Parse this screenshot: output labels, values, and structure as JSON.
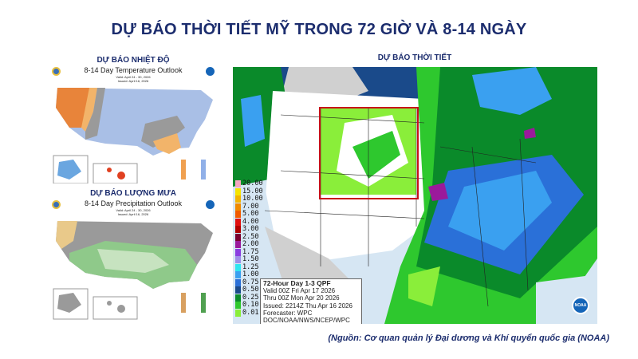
{
  "title": "DỰ BÁO THỜI TIẾT MỸ TRONG 72 GIỜ VÀ 8-14 NGÀY",
  "temperature_panel": {
    "heading": "DỰ BÁO NHIỆT ĐỘ",
    "map_title": "8-14 Day Temperature Outlook",
    "valid": "Valid: April 24 - 30, 2026",
    "issued": "Issued: April 16, 2026",
    "colors": {
      "above": "#e8843a",
      "near": "#9a9a9a",
      "below": "#a9bfe6"
    }
  },
  "precipitation_panel": {
    "heading": "DỰ BÁO LƯỢNG MƯA",
    "map_title": "8-14 Day Precipitation Outlook",
    "valid": "Valid: April 24 - 30, 2026",
    "issued": "Issued: April 16, 2026",
    "colors": {
      "above": "#8fc98a",
      "near": "#9a9a9a",
      "below": "#e9c98a"
    }
  },
  "main_map": {
    "heading": "DỰ BÁO THỜI TIẾT",
    "legend": [
      {
        "label": "20.00",
        "color": "#f4a6c0"
      },
      {
        "label": "15.00",
        "color": "#f5e400"
      },
      {
        "label": "10.00",
        "color": "#f2b400"
      },
      {
        "label": "7.00",
        "color": "#f08a00"
      },
      {
        "label": "5.00",
        "color": "#f05a00"
      },
      {
        "label": "4.00",
        "color": "#e01010"
      },
      {
        "label": "3.00",
        "color": "#b00000"
      },
      {
        "label": "2.50",
        "color": "#7a0030"
      },
      {
        "label": "2.00",
        "color": "#9b1a9b"
      },
      {
        "label": "1.75",
        "color": "#8a3ee0"
      },
      {
        "label": "1.50",
        "color": "#9d8ee8"
      },
      {
        "label": "1.25",
        "color": "#2ee6f0"
      },
      {
        "label": "1.00",
        "color": "#3aa0f0"
      },
      {
        "label": "0.75",
        "color": "#2a70d8"
      },
      {
        "label": "0.50",
        "color": "#1a4a8a"
      },
      {
        "label": "0.25",
        "color": "#0a8a2a"
      },
      {
        "label": "0.10",
        "color": "#2ec82e"
      },
      {
        "label": "0.01",
        "color": "#8aee3a"
      }
    ],
    "info": {
      "title": "72-Hour Day 1-3 QPF",
      "valid": "Valid 00Z Fri Apr 17 2026",
      "thru": "Thru 00Z Mon Apr 20 2026",
      "issued": "Issued: 2214Z Thu Apr 16 2026",
      "forecaster": "Forecaster: WPC",
      "agency": "DOC/NOAA/NWS/NCEP/WPC"
    },
    "logo_text": "NOAA",
    "highlight_color": "#c8101a"
  },
  "source": "(Nguồn: Cơ quan quản lý Đại dương và Khí quyển quốc gia (NOAA)"
}
